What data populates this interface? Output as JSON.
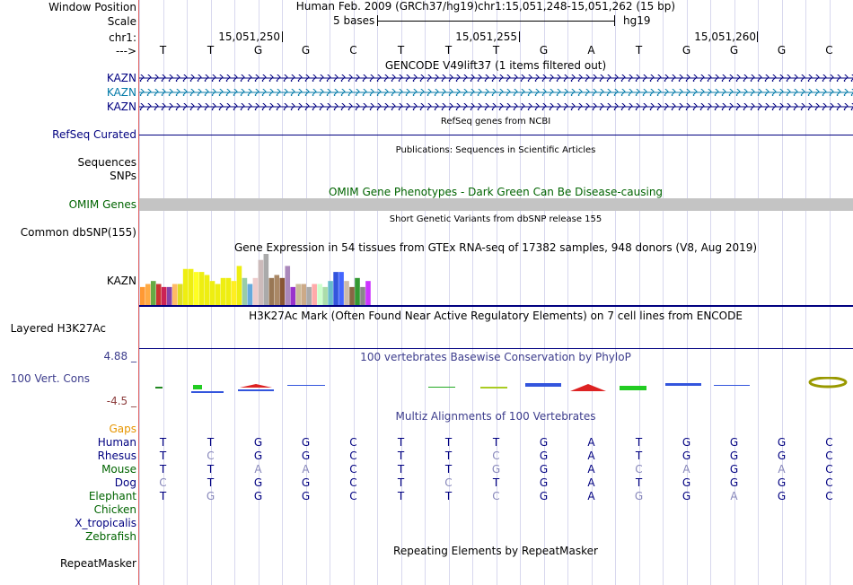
{
  "labels": {
    "window_position": "Window Position",
    "scale": "Scale",
    "chr": "chr1:",
    "arrow": "--->",
    "kazn": "KAZN",
    "refseq": "RefSeq Curated",
    "sequences": "Sequences",
    "snps": "SNPs",
    "omim": "OMIM Genes",
    "dbsnp": "Common dbSNP(155)",
    "gtex": "KAZN",
    "h3k27": "Layered H3K27Ac",
    "cons_hi": "4.88 _",
    "cons_name": "100 Vert. Cons",
    "cons_lo": "-4.5 _",
    "gaps": "Gaps",
    "species": [
      {
        "name": "Human",
        "color": "#000080"
      },
      {
        "name": "Rhesus",
        "color": "#000080"
      },
      {
        "name": "Mouse",
        "color": "#006400"
      },
      {
        "name": "Dog",
        "color": "#000080"
      },
      {
        "name": "Elephant",
        "color": "#006400"
      },
      {
        "name": "Chicken",
        "color": "#006400"
      },
      {
        "name": "X_tropicalis",
        "color": "#000080"
      },
      {
        "name": "Zebrafish",
        "color": "#006400"
      }
    ],
    "repeatmasker": "RepeatMasker"
  },
  "header": {
    "assembly": "Human Feb. 2009 (GRCh37/hg19)",
    "position": "chr1:15,051,248-15,051,262 (15 bp)",
    "scale_text": "5 bases",
    "scale_db": "hg19",
    "ticks": [
      "15,051,250",
      "15,051,255",
      "15,051,260"
    ]
  },
  "sequence": [
    "T",
    "T",
    "G",
    "G",
    "C",
    "T",
    "T",
    "T",
    "G",
    "A",
    "T",
    "G",
    "G",
    "G",
    "C"
  ],
  "tracks": {
    "gencode_title": "GENCODE V49lift37 (1 items filtered out)",
    "refseq_title": "RefSeq genes from NCBI",
    "pubs_title": "Publications: Sequences in Scientific Articles",
    "omim_title": "OMIM Gene Phenotypes - Dark Green Can Be Disease-causing",
    "dbsnp_title": "Short Genetic Variants from dbSNP release 155",
    "gtex_title": "Gene Expression in 54 tissues from GTEx RNA-seq of 17382 samples, 948 donors (V8, Aug 2019)",
    "h3k27_title": "H3K27Ac Mark (Often Found Near Active Regulatory Elements) on 7 cell lines from ENCODE",
    "cons_title": "100 vertebrates Basewise Conservation by PhyloP",
    "multiz_title": "Multiz Alignments of 100 Vertebrates",
    "rmsk_title": "Repeating Elements by RepeatMasker"
  },
  "gtex_colors": [
    "#ff9933",
    "#ffaa44",
    "#66aa44",
    "#cc3333",
    "#cc2255",
    "#8844aa",
    "#ffbb66",
    "#dddd22",
    "#eeee11",
    "#eeee11",
    "#ffff22",
    "#eeee11",
    "#eeee11",
    "#eeee11",
    "#eeee11",
    "#eeee11",
    "#eeee11",
    "#ffee22",
    "#eeee11",
    "#99ccaa",
    "#66aadd",
    "#eecccc",
    "#ccbbbb",
    "#aaaaaa",
    "#997755",
    "#aa8866",
    "#885533",
    "#aa88bb",
    "#9933cc",
    "#ccbb99",
    "#ccaa88",
    "#aaaaaa",
    "#ffaaaa",
    "#ccffcc",
    "#aaddaa",
    "#66bbcc",
    "#3355dd",
    "#4466ff",
    "#ccbbaa",
    "#886644",
    "#339933",
    "#888888",
    "#cc33ff"
  ],
  "gtex_values": [
    0.3,
    0.35,
    0.4,
    0.35,
    0.3,
    0.3,
    0.35,
    0.35,
    0.6,
    0.6,
    0.55,
    0.55,
    0.5,
    0.4,
    0.35,
    0.45,
    0.45,
    0.4,
    0.65,
    0.45,
    0.35,
    0.45,
    0.75,
    0.85,
    0.45,
    0.5,
    0.45,
    0.65,
    0.3,
    0.35,
    0.35,
    0.3,
    0.35,
    0.35,
    0.3,
    0.4,
    0.55,
    0.55,
    0.4,
    0.3,
    0.45,
    0.3,
    0.4
  ],
  "alignment": [
    [
      "T",
      "T",
      "G",
      "G",
      "C",
      "T",
      "T",
      "T",
      "G",
      "A",
      "T",
      "G",
      "G",
      "G",
      "C"
    ],
    [
      "T",
      "C",
      "G",
      "G",
      "C",
      "T",
      "T",
      "C",
      "G",
      "A",
      "T",
      "G",
      "G",
      "G",
      "C"
    ],
    [
      "T",
      "T",
      "A",
      "A",
      "C",
      "T",
      "T",
      "G",
      "G",
      "A",
      "C",
      "A",
      "G",
      "A",
      "C"
    ],
    [
      "C",
      "T",
      "G",
      "G",
      "C",
      "T",
      "C",
      "T",
      "G",
      "A",
      "T",
      "G",
      "G",
      "G",
      "C"
    ],
    [
      "T",
      "G",
      "G",
      "G",
      "C",
      "T",
      "T",
      "C",
      "G",
      "A",
      "G",
      "G",
      "A",
      "G",
      "C"
    ]
  ],
  "alignment_match": [
    [
      1,
      1,
      1,
      1,
      1,
      1,
      1,
      1,
      1,
      1,
      1,
      1,
      1,
      1,
      1
    ],
    [
      1,
      0,
      1,
      1,
      1,
      1,
      1,
      0,
      1,
      1,
      1,
      1,
      1,
      1,
      1
    ],
    [
      1,
      1,
      0,
      0,
      1,
      1,
      1,
      0,
      1,
      1,
      0,
      0,
      1,
      0,
      1
    ],
    [
      0,
      1,
      1,
      1,
      1,
      1,
      0,
      1,
      1,
      1,
      1,
      1,
      1,
      1,
      1
    ],
    [
      1,
      0,
      1,
      1,
      1,
      1,
      1,
      0,
      1,
      1,
      0,
      1,
      0,
      1,
      1
    ]
  ],
  "colors": {
    "track_title": "#000000",
    "omim_green": "#006400",
    "gene_blue": "#000080",
    "gencode_teal": "#0079a7",
    "cons_blue": "#3c3c8c",
    "gaps_orange": "#e69500"
  }
}
